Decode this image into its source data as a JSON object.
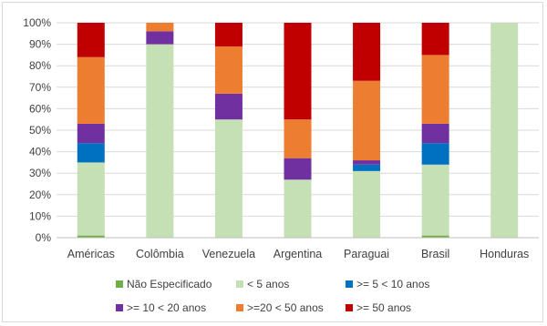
{
  "chart_data": {
    "type": "bar",
    "stacked": true,
    "percent_stacked": true,
    "categories": [
      "Américas",
      "Colômbia",
      "Venezuela",
      "Argentina",
      "Paraguai",
      "Brasil",
      "Honduras"
    ],
    "series": [
      {
        "name": "Não Especificado",
        "color": "#70ad47",
        "values": [
          1,
          0,
          0,
          0,
          0,
          1,
          0
        ]
      },
      {
        "name": "< 5 anos",
        "color": "#c5e0b4",
        "values": [
          34,
          90,
          55,
          27,
          31,
          33,
          100
        ]
      },
      {
        "name": ">= 5 < 10 anos",
        "color": "#0070c0",
        "values": [
          9,
          0,
          0,
          0,
          3,
          10,
          0
        ]
      },
      {
        "name": ">= 10 < 20 anos",
        "color": "#7030a0",
        "values": [
          9,
          6,
          12,
          10,
          2,
          9,
          0
        ]
      },
      {
        "name": ">=20 < 50 anos",
        "color": "#ed7d31",
        "values": [
          31,
          4,
          22,
          18,
          37,
          32,
          0
        ]
      },
      {
        "name": ">= 50 anos",
        "color": "#c00000",
        "values": [
          16,
          0,
          11,
          45,
          27,
          15,
          0
        ]
      }
    ],
    "ylim": [
      0,
      100
    ],
    "yticks": [
      "0%",
      "10%",
      "20%",
      "30%",
      "40%",
      "50%",
      "60%",
      "70%",
      "80%",
      "90%",
      "100%"
    ],
    "grid": true,
    "legend": "bottom"
  }
}
